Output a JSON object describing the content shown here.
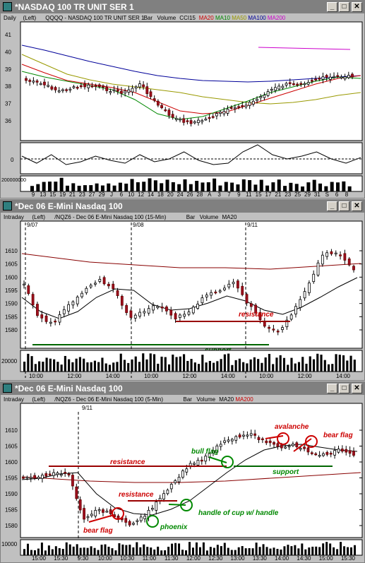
{
  "windows": [
    {
      "title": "*NASDAQ 100 TR UNIT SER 1",
      "header": {
        "period": "Daily",
        "left": "(Left)",
        "symbol": "QQQQ - NASDAQ 100 TR UNIT SER 1",
        "items": [
          {
            "t": "Bar",
            "c": "#000000"
          },
          {
            "t": "Volume",
            "c": "#000000"
          },
          {
            "t": "CCI15",
            "c": "#000000"
          },
          {
            "t": "MA20",
            "c": "#cc0000"
          },
          {
            "t": "MA10",
            "c": "#008800"
          },
          {
            "t": "MA50",
            "c": "#999900"
          },
          {
            "t": "MA100",
            "c": "#000099"
          },
          {
            "t": "MA200",
            "c": "#cc00cc"
          }
        ]
      },
      "yticks": [
        "41",
        "40",
        "39",
        "38",
        "37",
        "36"
      ],
      "osc_tick": "0",
      "vol_label": "200000000",
      "xticks": [
        "9",
        "13",
        "15",
        "19",
        "21",
        "23",
        "27",
        "29",
        "J",
        "6",
        "10",
        "12",
        "14",
        "18",
        "20",
        "24",
        "26",
        "28",
        "A",
        "3",
        "7",
        "9",
        "11",
        "15",
        "17",
        "21",
        "23",
        "25",
        "29",
        "31",
        "S",
        "6",
        "8"
      ]
    },
    {
      "title": "*Dec 06  E-Mini Nasdaq 100",
      "header": {
        "period": "Intraday",
        "left": "(Left)",
        "symbol": "/NQZ6 - Dec 06  E-Mini Nasdaq 100 (15-Min)",
        "items": [
          {
            "t": "Bar",
            "c": "#000000"
          },
          {
            "t": "Volume",
            "c": "#000000"
          },
          {
            "t": "MA20",
            "c": "#000000"
          }
        ]
      },
      "dates": [
        "9/07",
        "9/08",
        "9/11"
      ],
      "yticks": [
        "1610",
        "1605",
        "1600",
        "1595",
        "1590",
        "1585",
        "1580"
      ],
      "annotations": [
        {
          "t": "resistance",
          "c": "#cc0000"
        },
        {
          "t": "support",
          "c": "#006600"
        }
      ],
      "vol_label": "20000",
      "xticks": [
        "10:00",
        "12:00",
        "14:00",
        "10:00",
        "12:00",
        "14:00",
        "10:00",
        "12:00",
        "14:00"
      ]
    },
    {
      "title": "*Dec 06  E-Mini Nasdaq 100",
      "header": {
        "period": "Intraday",
        "left": "(Left)",
        "symbol": "/NQZ6 - Dec 06  E-Mini Nasdaq 100 (5-Min)",
        "items": [
          {
            "t": "Bar",
            "c": "#000000"
          },
          {
            "t": "Volume",
            "c": "#000000"
          },
          {
            "t": "MA20",
            "c": "#000000"
          },
          {
            "t": "MA200",
            "c": "#cc0000"
          }
        ]
      },
      "dates": [
        "9/11"
      ],
      "yticks": [
        "1610",
        "1605",
        "1600",
        "1595",
        "1590",
        "1585",
        "1580"
      ],
      "annotations": [
        {
          "t": "resistance",
          "c": "#cc0000"
        },
        {
          "t": "resistance",
          "c": "#cc0000"
        },
        {
          "t": "bear flag",
          "c": "#cc0000"
        },
        {
          "t": "phoenix",
          "c": "#008800"
        },
        {
          "t": "handle of cup w/ handle",
          "c": "#008800"
        },
        {
          "t": "bull flag",
          "c": "#008800"
        },
        {
          "t": "support",
          "c": "#008800"
        },
        {
          "t": "avalanche",
          "c": "#cc0000"
        },
        {
          "t": "bear flag",
          "c": "#cc0000"
        }
      ],
      "vol_label": "10000",
      "xticks": [
        "15:00",
        "15:30",
        "9:30",
        "10:00",
        "10:30",
        "11:00",
        "11:30",
        "12:00",
        "12:30",
        "13:00",
        "13:30",
        "14:00",
        "14:30",
        "15:00",
        "15:30"
      ]
    }
  ]
}
